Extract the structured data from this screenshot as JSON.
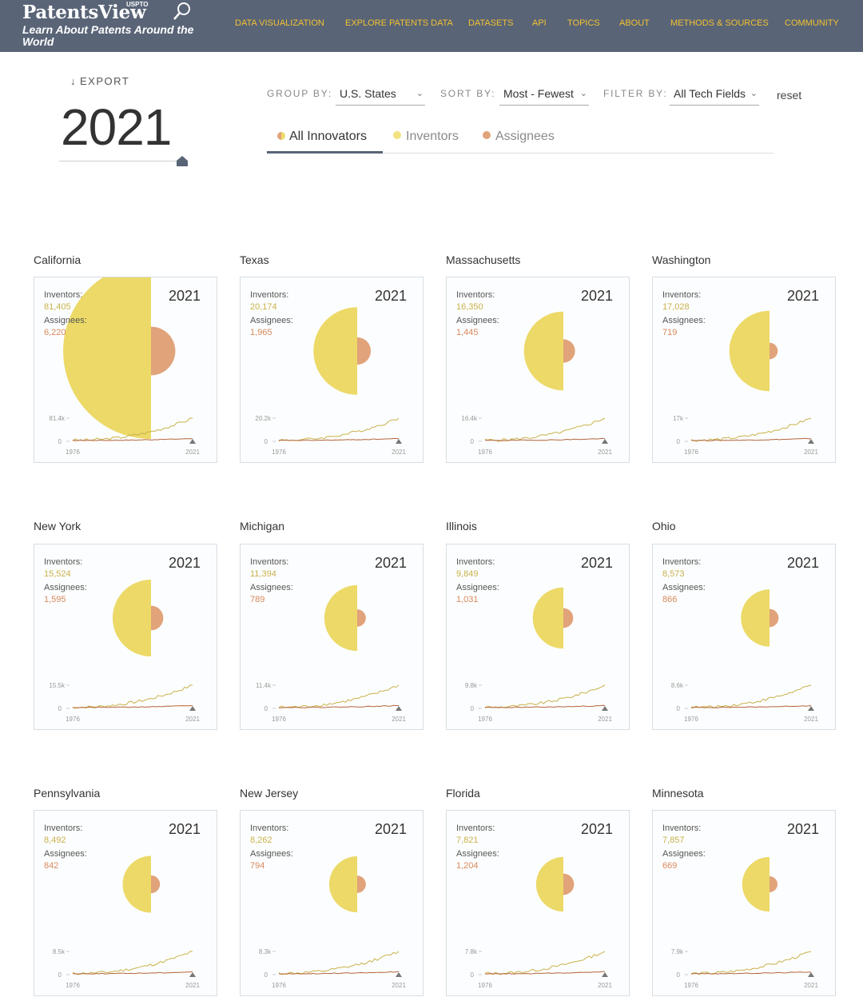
{
  "header": {
    "logo_name": "PatentsView",
    "logo_uspto": "USPTO",
    "logo_tagline": "Learn About Patents Around the World",
    "nav": [
      "DATA VISUALIZATION",
      "EXPLORE PATENTS DATA",
      "DATASETS",
      "API",
      "TOPICS",
      "ABOUT",
      "METHODS & SOURCES",
      "COMMUNITY"
    ]
  },
  "controls": {
    "export_label": "EXPORT",
    "year": "2021",
    "group_by_label": "GROUP BY:",
    "group_by_value": "U.S. States",
    "sort_by_label": "SORT BY:",
    "sort_by_value": "Most - Fewest",
    "filter_by_label": "FILTER BY:",
    "filter_by_value": "All Tech Fields",
    "reset_label": "reset"
  },
  "tabs": [
    {
      "label": "All Innovators",
      "active": true
    },
    {
      "label": "Inventors",
      "active": false
    },
    {
      "label": "Assignees",
      "active": false
    }
  ],
  "colors": {
    "header_bg": "#596477",
    "nav_text": "#f2c230",
    "inventors": "#ecd967",
    "assignees": "#e1a37a",
    "inventor_line": "#c9b24a",
    "assignee_line": "#b5653c"
  },
  "card_labels": {
    "inventors": "Inventors:",
    "assignees": "Assignees:",
    "year": "2021",
    "axis_zero": "0",
    "axis_start": "1976",
    "axis_end": "2021"
  },
  "states": [
    {
      "name": "California",
      "inventors": "81,405",
      "assignees": "6,220",
      "inv_value": 81405,
      "asg_value": 6220,
      "axis_max": "81.4k"
    },
    {
      "name": "Texas",
      "inventors": "20,174",
      "assignees": "1,965",
      "inv_value": 20174,
      "asg_value": 1965,
      "axis_max": "20.2k"
    },
    {
      "name": "Massachusetts",
      "inventors": "16,350",
      "assignees": "1,445",
      "inv_value": 16350,
      "asg_value": 1445,
      "axis_max": "16.4k"
    },
    {
      "name": "Washington",
      "inventors": "17,028",
      "assignees": "719",
      "inv_value": 17028,
      "asg_value": 719,
      "axis_max": "17k"
    },
    {
      "name": "New York",
      "inventors": "15,524",
      "assignees": "1,595",
      "inv_value": 15524,
      "asg_value": 1595,
      "axis_max": "15.5k"
    },
    {
      "name": "Michigan",
      "inventors": "11,394",
      "assignees": "789",
      "inv_value": 11394,
      "asg_value": 789,
      "axis_max": "11.4k"
    },
    {
      "name": "Illinois",
      "inventors": "9,849",
      "assignees": "1,031",
      "inv_value": 9849,
      "asg_value": 1031,
      "axis_max": "9.8k"
    },
    {
      "name": "Ohio",
      "inventors": "8,573",
      "assignees": "866",
      "inv_value": 8573,
      "asg_value": 866,
      "axis_max": "8.6k"
    },
    {
      "name": "Pennsylvania",
      "inventors": "8,492",
      "assignees": "842",
      "inv_value": 8492,
      "asg_value": 842,
      "axis_max": "8.5k"
    },
    {
      "name": "New Jersey",
      "inventors": "8,262",
      "assignees": "794",
      "inv_value": 8262,
      "asg_value": 794,
      "axis_max": "8.3k"
    },
    {
      "name": "Florida",
      "inventors": "7,821",
      "assignees": "1,204",
      "inv_value": 7821,
      "asg_value": 1204,
      "axis_max": "7.8k"
    },
    {
      "name": "Minnesota",
      "inventors": "7,857",
      "assignees": "669",
      "inv_value": 7857,
      "asg_value": 669,
      "axis_max": "7.9k"
    }
  ]
}
